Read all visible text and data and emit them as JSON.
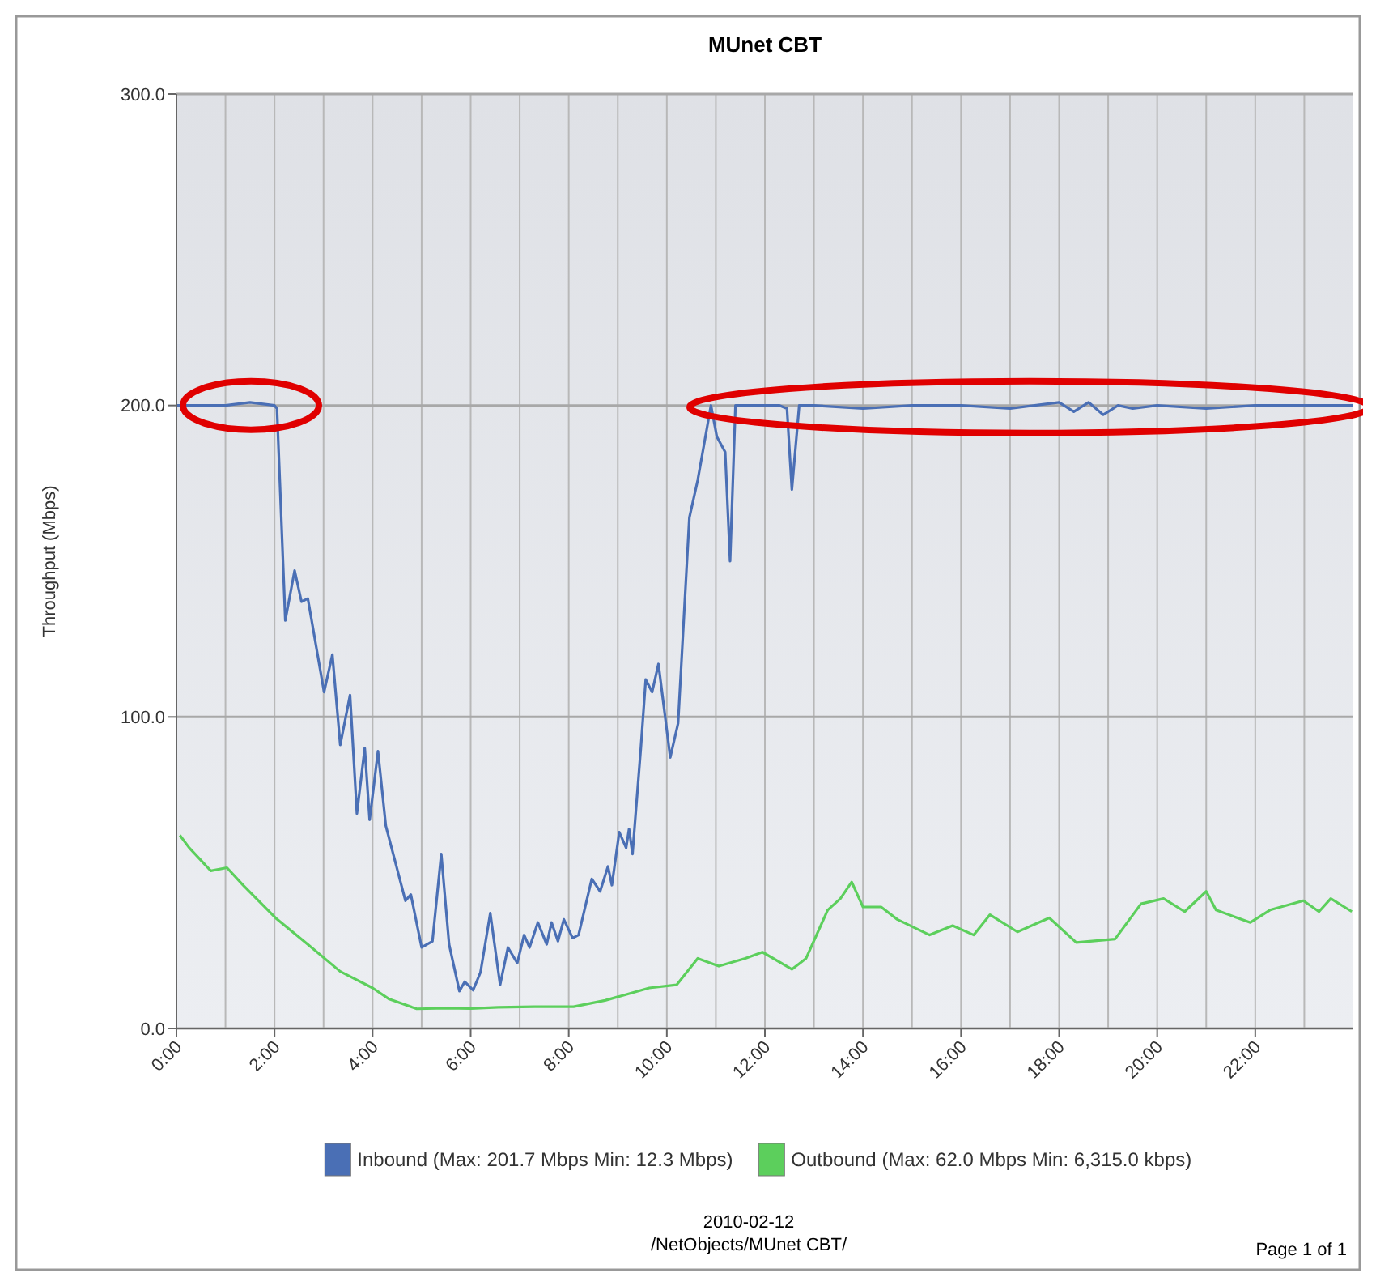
{
  "chart_data": {
    "type": "line",
    "title": "MUnet CBT",
    "ylabel": "Throughput (Mbps)",
    "xlim": [
      0,
      24
    ],
    "xticks": [
      {
        "value": 0,
        "label": "0:00"
      },
      {
        "value": 1,
        "label": null
      },
      {
        "value": 2,
        "label": "2:00"
      },
      {
        "value": 3,
        "label": null
      },
      {
        "value": 4,
        "label": "4:00"
      },
      {
        "value": 5,
        "label": null
      },
      {
        "value": 6,
        "label": "6:00"
      },
      {
        "value": 7,
        "label": null
      },
      {
        "value": 8,
        "label": "8:00"
      },
      {
        "value": 9,
        "label": null
      },
      {
        "value": 10,
        "label": "10:00"
      },
      {
        "value": 11,
        "label": null
      },
      {
        "value": 12,
        "label": "12:00"
      },
      {
        "value": 13,
        "label": null
      },
      {
        "value": 14,
        "label": "14:00"
      },
      {
        "value": 15,
        "label": null
      },
      {
        "value": 16,
        "label": "16:00"
      },
      {
        "value": 17,
        "label": null
      },
      {
        "value": 18,
        "label": "18:00"
      },
      {
        "value": 19,
        "label": null
      },
      {
        "value": 20,
        "label": "20:00"
      },
      {
        "value": 21,
        "label": null
      },
      {
        "value": 22,
        "label": "22:00"
      },
      {
        "value": 23,
        "label": null
      }
    ],
    "ylim": [
      0,
      300
    ],
    "yticks": [
      {
        "value": 0,
        "label": "0.0"
      },
      {
        "value": 100,
        "label": "100.0"
      },
      {
        "value": 200,
        "label": "200.0"
      },
      {
        "value": 300,
        "label": "300.0"
      }
    ],
    "grid": true,
    "legend": "bottom",
    "marker": "none",
    "line_style": "solid",
    "series": [
      {
        "name": "Inbound (Max: 201.7 Mbps Min: 12.3 Mbps)",
        "color": "#4a6fb5",
        "x": [
          0,
          0.5,
          1,
          1.5,
          2.0,
          2.05,
          2.22,
          2.41,
          2.55,
          2.68,
          3.01,
          3.18,
          3.34,
          3.54,
          3.68,
          3.84,
          3.94,
          4.11,
          4.27,
          4.67,
          4.78,
          5.0,
          5.22,
          5.4,
          5.56,
          5.77,
          5.88,
          6.05,
          6.2,
          6.4,
          6.6,
          6.76,
          6.95,
          7.09,
          7.2,
          7.37,
          7.55,
          7.65,
          7.78,
          7.9,
          8.08,
          8.2,
          8.47,
          8.64,
          8.8,
          8.88,
          9.03,
          9.17,
          9.23,
          9.3,
          9.47,
          9.57,
          9.7,
          9.83,
          10.07,
          10.23,
          10.46,
          10.63,
          10.9,
          11.02,
          11.19,
          11.29,
          11.4,
          11.8,
          12.3,
          12.45,
          12.55,
          12.7,
          13.0,
          14.0,
          15.0,
          16.0,
          17.0,
          18.0,
          18.3,
          18.6,
          18.9,
          19.2,
          19.5,
          20.0,
          21.0,
          22.0,
          23.0,
          24.0
        ],
        "values": [
          200,
          200,
          200,
          201,
          200,
          199,
          131,
          147,
          137,
          138,
          108,
          120,
          91,
          107,
          69,
          90,
          67,
          89,
          65,
          41,
          43,
          26,
          28,
          56,
          27,
          12,
          15,
          12.3,
          18,
          37,
          14,
          26,
          21,
          30,
          26,
          34,
          27,
          34,
          28,
          35,
          29,
          30,
          48,
          44,
          52,
          46,
          63,
          58,
          64,
          56,
          90,
          112,
          108,
          117,
          87,
          98,
          164,
          176,
          200,
          190,
          185,
          150,
          200,
          200,
          200,
          199,
          173,
          200,
          200,
          199,
          200,
          200,
          199,
          201,
          198,
          201,
          197,
          200,
          199,
          200,
          199,
          200,
          200,
          200
        ]
      },
      {
        "name": "Outbound (Max: 62.0 Mbps Min: 6,315.0 kbps)",
        "color": "#5ccf5c",
        "x": [
          0.07,
          0.26,
          0.7,
          1.03,
          1.36,
          2.02,
          2.68,
          3.34,
          4.0,
          4.34,
          4.9,
          5.5,
          6.0,
          6.56,
          7.3,
          8.1,
          8.74,
          9.64,
          10.2,
          10.63,
          11.06,
          11.6,
          11.95,
          12.55,
          12.84,
          13.28,
          13.54,
          13.77,
          14.0,
          14.37,
          14.7,
          15.36,
          15.83,
          16.26,
          16.59,
          17.15,
          17.8,
          18.35,
          19.14,
          19.67,
          20.13,
          20.56,
          21.0,
          21.2,
          21.9,
          22.3,
          22.98,
          23.3,
          23.54,
          23.97
        ],
        "values": [
          62,
          58,
          50.6,
          51.6,
          46,
          35.5,
          27,
          18.3,
          13,
          9.4,
          6.3,
          6.5,
          6.4,
          6.8,
          7,
          7,
          9,
          13,
          14,
          22.5,
          20,
          22.5,
          24.5,
          19,
          22.5,
          38,
          41.7,
          47,
          39,
          39,
          35,
          30,
          33,
          30,
          36.5,
          31,
          35.5,
          27.6,
          28.7,
          40,
          41.7,
          37.5,
          44,
          38,
          34,
          38,
          41,
          37.5,
          41.7,
          37.5
        ]
      }
    ],
    "annotations": [
      "2010-02-12",
      "/NetObjects/MUnet CBT/",
      "Page 1 of 1"
    ]
  }
}
